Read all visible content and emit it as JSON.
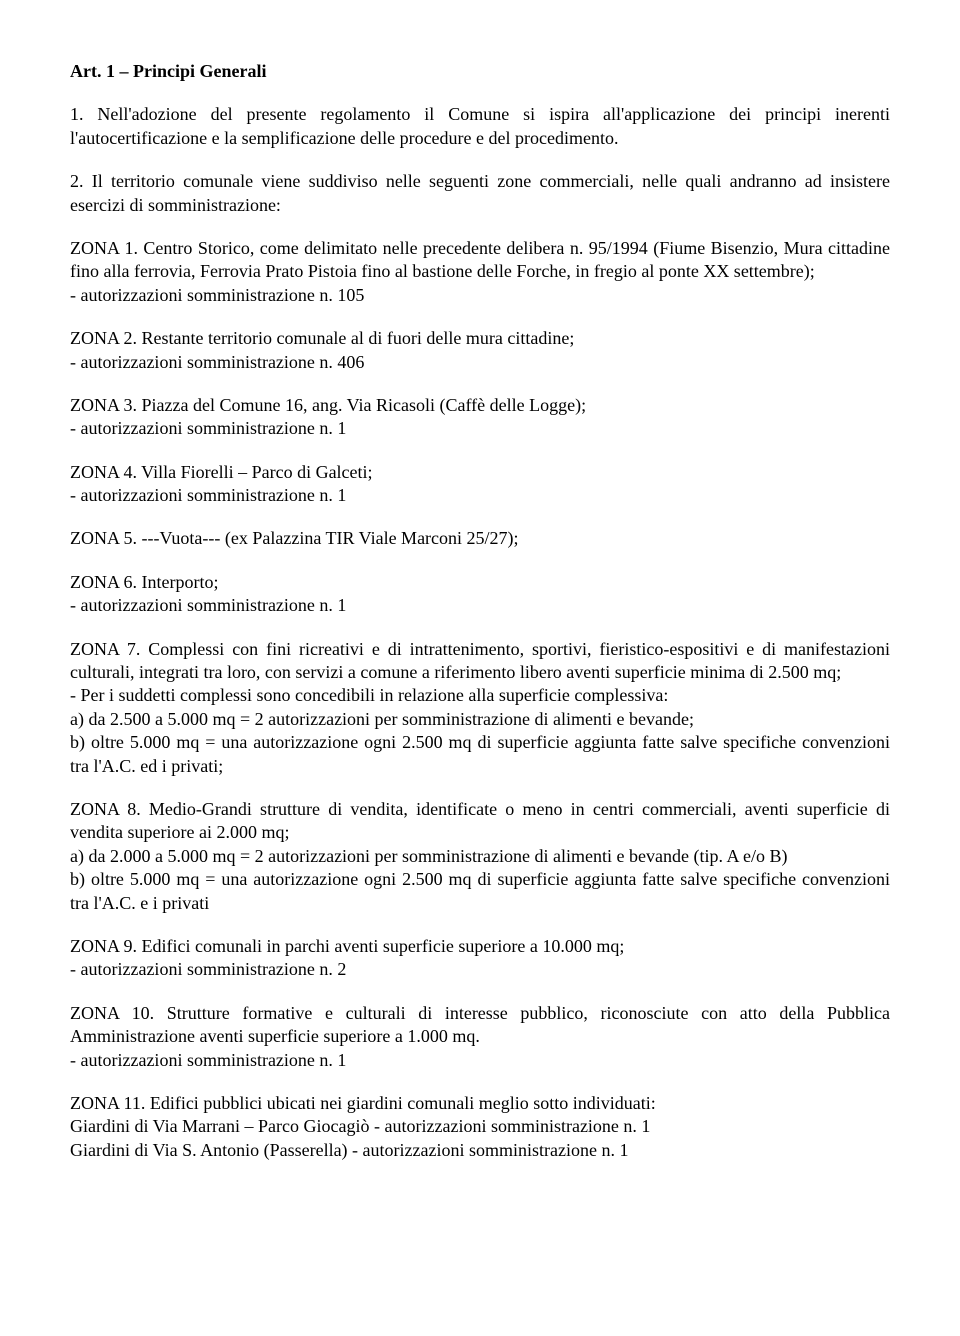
{
  "title": "Art. 1 – Principi Generali",
  "p1": "1. Nell'adozione del presente regolamento il Comune si ispira all'applicazione dei principi inerenti l'autocertificazione e la semplificazione delle procedure e del procedimento.",
  "p2": "2. Il territorio comunale viene suddiviso nelle seguenti zone commerciali, nelle quali andranno ad insistere esercizi di somministrazione:",
  "z1a": "ZONA 1. Centro Storico, come delimitato nelle precedente delibera n. 95/1994 (Fiume Bisenzio, Mura cittadine fino alla ferrovia, Ferrovia Prato Pistoia fino al bastione delle Forche, in fregio al ponte XX settembre);",
  "z1b": "- autorizzazioni somministrazione n. 105",
  "z2a": "ZONA 2. Restante territorio comunale al di fuori delle mura cittadine;",
  "z2b": "- autorizzazioni somministrazione n. 406",
  "z3a": "ZONA 3. Piazza del Comune 16, ang. Via Ricasoli (Caffè delle Logge);",
  "z3b": "- autorizzazioni somministrazione n. 1",
  "z4a": "ZONA 4. Villa Fiorelli – Parco di Galceti;",
  "z4b": "- autorizzazioni somministrazione n. 1",
  "z5": "ZONA 5. ---Vuota--- (ex Palazzina TIR Viale Marconi 25/27);",
  "z6a": "ZONA 6. Interporto;",
  "z6b": "- autorizzazioni somministrazione n. 1",
  "z7a": "ZONA 7. Complessi con fini ricreativi e di intrattenimento, sportivi, fieristico-espositivi e di manifestazioni culturali, integrati tra loro, con servizi a comune a riferimento libero aventi superficie minima di 2.500 mq;",
  "z7b": "- Per i suddetti complessi sono concedibili in relazione alla superficie complessiva:",
  "z7c": "a) da 2.500 a 5.000 mq = 2 autorizzazioni per somministrazione di alimenti e bevande;",
  "z7d": "b) oltre 5.000 mq = una autorizzazione ogni 2.500 mq di superficie aggiunta fatte salve specifiche convenzioni tra l'A.C. ed i privati;",
  "z8a": "ZONA 8. Medio-Grandi strutture di vendita, identificate o meno in centri commerciali, aventi superficie di vendita superiore ai 2.000 mq;",
  "z8b": "a) da 2.000 a 5.000 mq = 2 autorizzazioni per somministrazione di alimenti e bevande (tip. A e/o B)",
  "z8c": "b) oltre 5.000 mq = una autorizzazione ogni 2.500 mq di superficie aggiunta fatte salve specifiche convenzioni tra l'A.C. e i privati",
  "z9a": "ZONA 9. Edifici comunali in parchi aventi superficie superiore a 10.000 mq;",
  "z9b": "- autorizzazioni somministrazione n. 2",
  "z10a": "ZONA 10. Strutture formative e culturali di interesse pubblico, riconosciute con atto della Pubblica Amministrazione aventi superficie superiore a 1.000 mq.",
  "z10b": "- autorizzazioni somministrazione n. 1",
  "z11a": "ZONA 11. Edifici pubblici ubicati nei giardini comunali meglio sotto individuati:",
  "z11b": "Giardini di Via Marrani – Parco Giocagiò - autorizzazioni somministrazione n. 1",
  "z11c": "Giardini di Via S. Antonio (Passerella) - autorizzazioni somministrazione n. 1"
}
